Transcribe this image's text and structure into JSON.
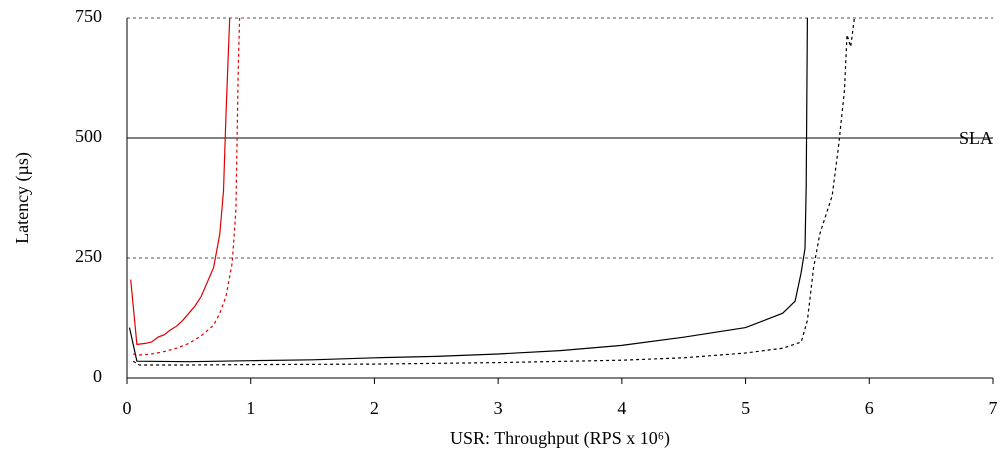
{
  "chart_data": {
    "type": "line",
    "x_label": "USR: Throughput (RPS x 10⁶)",
    "y_label": "Latency (µs)",
    "xlim": [
      0,
      7
    ],
    "xticks": [
      0,
      1,
      2,
      3,
      4,
      5,
      6,
      7
    ],
    "ylim": [
      0,
      750
    ],
    "yticks": [
      0,
      250,
      500,
      750
    ],
    "grid": true,
    "grid_style": "dotted",
    "reference_line": {
      "value": 500,
      "label": "SLA"
    },
    "series": [
      {
        "color": "#e00000",
        "style": "solid",
        "x": [
          0.03,
          0.08,
          0.15,
          0.2,
          0.25,
          0.3,
          0.35,
          0.4,
          0.45,
          0.5,
          0.55,
          0.6,
          0.65,
          0.7,
          0.75,
          0.78,
          0.8,
          0.82,
          0.83
        ],
        "values": [
          205,
          70,
          72,
          75,
          85,
          90,
          100,
          108,
          120,
          135,
          150,
          170,
          200,
          230,
          300,
          390,
          550,
          680,
          750
        ]
      },
      {
        "color": "#e00000",
        "style": "dotted",
        "x": [
          0.05,
          0.1,
          0.2,
          0.3,
          0.4,
          0.5,
          0.6,
          0.7,
          0.75,
          0.8,
          0.85,
          0.88,
          0.89,
          0.9,
          0.91
        ],
        "values": [
          50,
          48,
          50,
          55,
          62,
          72,
          88,
          110,
          135,
          170,
          240,
          350,
          500,
          650,
          750
        ]
      },
      {
        "color": "#000000",
        "style": "solid",
        "x": [
          0.02,
          0.08,
          0.5,
          1,
          1.5,
          2,
          2.5,
          3,
          3.5,
          4,
          4.5,
          5,
          5.3,
          5.4,
          5.45,
          5.48,
          5.49,
          5.5
        ],
        "values": [
          105,
          35,
          34,
          36,
          38,
          42,
          45,
          50,
          57,
          68,
          85,
          105,
          135,
          160,
          220,
          270,
          400,
          750
        ]
      },
      {
        "color": "#000000",
        "style": "dotted",
        "x": [
          0.05,
          0.1,
          0.5,
          1,
          2,
          3,
          4,
          4.5,
          5,
          5.3,
          5.45,
          5.5,
          5.55,
          5.6,
          5.7,
          5.75,
          5.8,
          5.82,
          5.85,
          5.88
        ],
        "values": [
          35,
          27,
          27,
          28,
          29,
          32,
          37,
          42,
          52,
          62,
          75,
          120,
          230,
          300,
          380,
          480,
          600,
          715,
          690,
          750
        ]
      }
    ]
  }
}
